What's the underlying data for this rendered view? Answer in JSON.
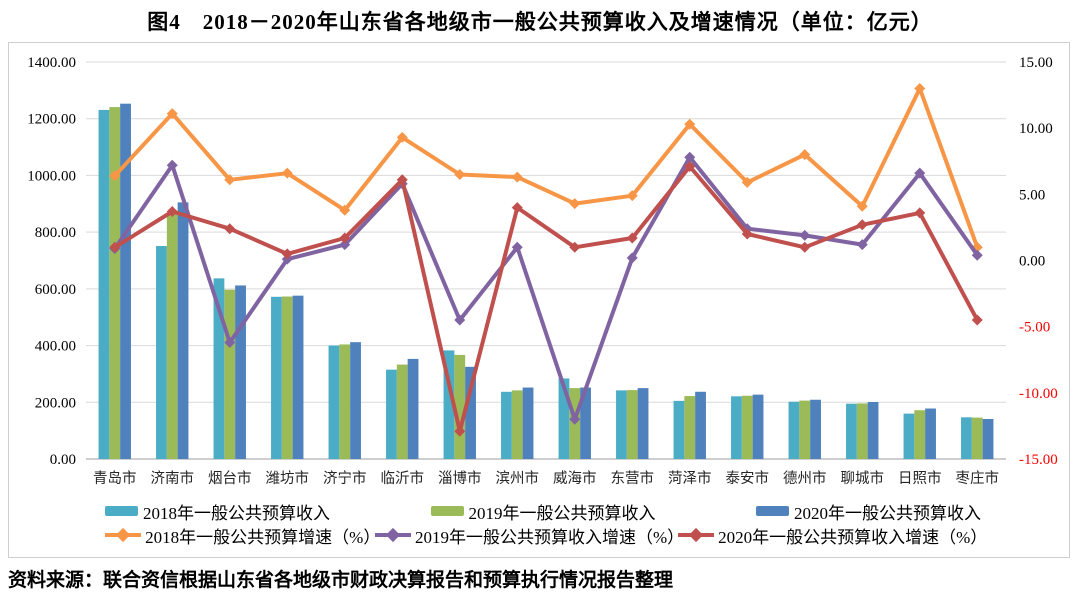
{
  "title": "图4　2018－2020年山东省各地级市一般公共预算收入及增速情况（单位：亿元）",
  "source": "资料来源：联合资信根据山东省各地级市财政决算报告和预算执行情况报告整理",
  "colors": {
    "bar_colors": [
      "#4BACC6",
      "#9BBB59",
      "#4F81BD"
    ],
    "line_colors": [
      "#F79646",
      "#8064A2",
      "#C0504D"
    ],
    "gridline": "#D9D9D9",
    "axis_line": "#9E9E9E",
    "negative_tick": "#FF0000",
    "tick_text": "#000000",
    "category_text": "#262626"
  },
  "chart_data": {
    "type": "bar+line",
    "title": "图4　2018－2020年山东省各地级市一般公共预算收入及增速情况（单位：亿元）",
    "categories": [
      "青岛市",
      "济南市",
      "烟台市",
      "潍坊市",
      "济宁市",
      "临沂市",
      "淄博市",
      "滨州市",
      "威海市",
      "东营市",
      "菏泽市",
      "泰安市",
      "德州市",
      "聊城市",
      "日照市",
      "枣庄市"
    ],
    "bar_series": [
      {
        "name": "2018年一般公共预算收入",
        "values": [
          1231,
          751,
          637,
          572,
          400,
          315,
          383,
          237,
          284,
          242,
          205,
          221,
          202,
          195,
          160,
          147
        ]
      },
      {
        "name": "2019年一般公共预算收入",
        "values": [
          1241,
          866,
          597,
          573,
          404,
          333,
          367,
          242,
          250,
          243,
          222,
          223,
          206,
          196,
          172,
          146
        ]
      },
      {
        "name": "2020年一般公共预算收入",
        "values": [
          1253,
          905,
          612,
          576,
          412,
          353,
          325,
          252,
          252,
          250,
          237,
          227,
          209,
          201,
          178,
          141
        ]
      }
    ],
    "line_series": [
      {
        "name": "2018年一般公共预算增速（%）",
        "values": [
          6.4,
          11.1,
          6.1,
          6.6,
          3.8,
          9.3,
          6.5,
          6.3,
          4.3,
          4.9,
          10.3,
          5.9,
          8.0,
          4.1,
          13.0,
          1.0
        ]
      },
      {
        "name": "2019年一般公共预算收入增速（%）",
        "values": [
          0.9,
          7.2,
          -6.2,
          0.1,
          1.2,
          5.8,
          -4.5,
          1.0,
          -12.0,
          0.2,
          7.8,
          2.4,
          1.9,
          1.2,
          6.6,
          0.4
        ]
      },
      {
        "name": "2020年一般公共预算收入增速（%）",
        "values": [
          1.0,
          3.7,
          2.4,
          0.5,
          1.7,
          6.1,
          -12.9,
          4.0,
          1.0,
          1.7,
          7.1,
          2.0,
          1.0,
          2.7,
          3.6,
          -4.5
        ]
      }
    ],
    "left_axis": {
      "min": 0,
      "max": 1400,
      "ticks": [
        "1400.00",
        "1200.00",
        "1000.00",
        "800.00",
        "600.00",
        "400.00",
        "200.00",
        "0.00"
      ]
    },
    "right_axis": {
      "min": -15,
      "max": 15,
      "ticks": [
        "15.00",
        "10.00",
        "5.00",
        "0.00",
        "-5.00",
        "-10.00",
        "-15.00"
      ]
    },
    "legend_position": "bottom",
    "grid": true
  }
}
